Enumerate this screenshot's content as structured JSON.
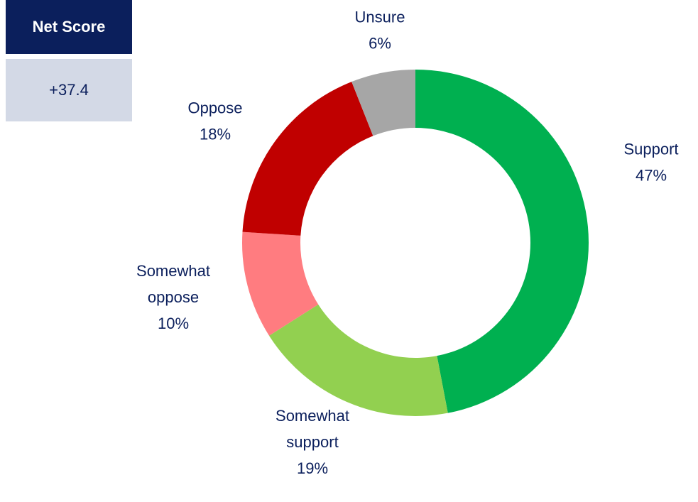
{
  "net_score": {
    "label": "Net Score",
    "value": "+37.4"
  },
  "chart_data": {
    "type": "pie",
    "style": "donut",
    "slices": [
      {
        "name": "Support",
        "value": 47,
        "label_lines": [
          "Support",
          "47%"
        ],
        "color": "#00b050"
      },
      {
        "name": "Somewhat support",
        "value": 19,
        "label_lines": [
          "Somewhat",
          "support",
          "19%"
        ],
        "color": "#92d050"
      },
      {
        "name": "Somewhat oppose",
        "value": 10,
        "label_lines": [
          "Somewhat",
          "oppose",
          "10%"
        ],
        "color": "#ff7c80"
      },
      {
        "name": "Oppose",
        "value": 18,
        "label_lines": [
          "Oppose",
          "18%"
        ],
        "color": "#c00000"
      },
      {
        "name": "Unsure",
        "value": 6,
        "label_lines": [
          "Unsure",
          "6%"
        ],
        "color": "#a6a6a6"
      }
    ]
  }
}
